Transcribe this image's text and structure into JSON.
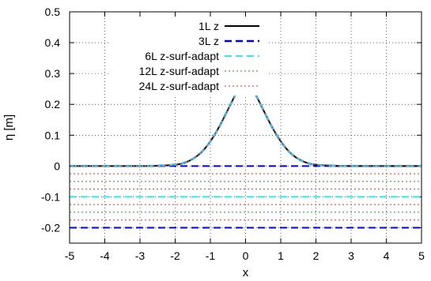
{
  "chart_data": {
    "type": "line",
    "xlabel": "x",
    "ylabel": "η [m]",
    "xlim": [
      -5,
      5
    ],
    "ylim": [
      -0.25,
      0.5
    ],
    "x_ticks": [
      -5,
      -4,
      -3,
      -2,
      -1,
      0,
      1,
      2,
      3,
      4,
      5
    ],
    "y_ticks": [
      -0.2,
      -0.1,
      0,
      0.1,
      0.2,
      0.3,
      0.4,
      0.5
    ],
    "y_tick_labels": [
      "-0.2",
      "-0.1",
      "0",
      "0.1",
      "0.2",
      "0.3",
      "0.4",
      "0.5"
    ],
    "grid": true,
    "legend_position": "top-right",
    "curve_x": [
      -5,
      -3,
      -2.5,
      -2,
      -1.75,
      -1.5,
      -1.25,
      -1,
      -0.75,
      -0.5,
      -0.25,
      0,
      0.25,
      0.5,
      0.75,
      1,
      1.25,
      1.5,
      1.75,
      2,
      2.5,
      3,
      5
    ],
    "curve_y": [
      0,
      0,
      0.001,
      0.004,
      0.01,
      0.023,
      0.045,
      0.08,
      0.127,
      0.183,
      0.24,
      0.29,
      0.24,
      0.183,
      0.127,
      0.08,
      0.045,
      0.023,
      0.01,
      0.004,
      0.001,
      0,
      0
    ],
    "series": [
      {
        "name": "1L z",
        "color": "#000000",
        "style": "solid"
      },
      {
        "name": "3L z",
        "color": "#0000ee",
        "style": "dashed"
      },
      {
        "name": "6L  z-surf-adapt",
        "color": "#33e8e8",
        "style": "dashed"
      },
      {
        "name": "12L z-surf-adapt",
        "color": "#2e8b2e",
        "style": "dotted"
      },
      {
        "name": "24L z-surf-adapt",
        "color": "#e03030",
        "style": "dotted"
      }
    ],
    "layer_lines": [
      {
        "y": 0,
        "color": "#0000ee",
        "style": "dashed"
      },
      {
        "y": -0.025,
        "color": "#e03030",
        "style": "dotted"
      },
      {
        "y": -0.05,
        "color": "#2e8b2e",
        "style": "dotted"
      },
      {
        "y": -0.075,
        "color": "#e03030",
        "style": "dotted"
      },
      {
        "y": -0.1,
        "color": "#33e8e8",
        "style": "dashed"
      },
      {
        "y": -0.125,
        "color": "#e03030",
        "style": "dotted"
      },
      {
        "y": -0.15,
        "color": "#2e8b2e",
        "style": "dotted"
      },
      {
        "y": -0.175,
        "color": "#e03030",
        "style": "dotted"
      },
      {
        "y": -0.2,
        "color": "#0000ee",
        "style": "dashed"
      }
    ]
  }
}
